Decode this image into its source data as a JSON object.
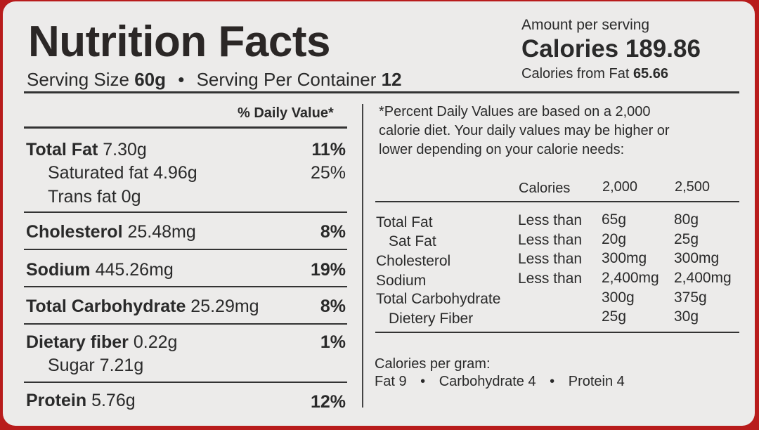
{
  "header": {
    "title": "Nutrition Facts",
    "serving_size_label": "Serving Size",
    "serving_size_value": "60g",
    "bullet": "•",
    "servings_label": "Serving Per Container",
    "servings_value": "12",
    "amount_per_serving": "Amount per serving",
    "calories_label": "Calories",
    "calories_value": "189.86",
    "calories_from_fat_label": "Calories from Fat",
    "calories_from_fat_value": "65.66"
  },
  "daily_value_header": "% Daily Value*",
  "nutrients": [
    {
      "name": "Total Fat",
      "amount": "7.30g",
      "pct": "11%"
    },
    {
      "name": "Saturated fat",
      "amount": "4.96g",
      "pct": "25%"
    },
    {
      "name": "Trans fat",
      "amount": "0g",
      "pct": ""
    },
    {
      "name": "Cholesterol",
      "amount": "25.48mg",
      "pct": "8%"
    },
    {
      "name": "Sodium",
      "amount": "445.26mg",
      "pct": "19%"
    },
    {
      "name": "Total Carbohydrate",
      "amount": "25.29mg",
      "pct": "8%"
    },
    {
      "name": "Dietary fiber",
      "amount": "0.22g",
      "pct": "1%"
    },
    {
      "name": "Sugar",
      "amount": "7.21g",
      "pct": ""
    },
    {
      "name": "Protein",
      "amount": "5.76g",
      "pct": "12%"
    }
  ],
  "footnote": {
    "lines": [
      "*Percent Daily Values are based on a 2,000",
      "calorie diet. Your daily values may be higher or",
      "lower depending on your calorie needs:"
    ],
    "table_header": [
      "Calories",
      "2,000",
      "2,500"
    ],
    "table_rows": [
      {
        "name": "Total Fat",
        "qual": "Less than",
        "v1": "65g",
        "v2": "80g"
      },
      {
        "name": "Sat Fat",
        "qual": "Less than",
        "v1": "20g",
        "v2": "25g"
      },
      {
        "name": "Cholesterol",
        "qual": "Less than",
        "v1": "300mg",
        "v2": "300mg"
      },
      {
        "name": "Sodium",
        "qual": "Less than",
        "v1": "2,400mg",
        "v2": "2,400mg"
      },
      {
        "name": "Total Carbohydrate",
        "qual": "",
        "v1": "300g",
        "v2": "375g"
      },
      {
        "name": "Dietery Fiber",
        "qual": "",
        "v1": "25g",
        "v2": "30g"
      }
    ],
    "calories_per_gram_label": "Calories per gram:",
    "fat_per_gram": "Fat 9",
    "carb_per_gram": "Carbohydrate 4",
    "protein_per_gram": "Protein 4",
    "bullet": "•"
  },
  "colors": {
    "background": "#b81c1c",
    "label": "#ecebea",
    "text": "#2a2a2a"
  }
}
